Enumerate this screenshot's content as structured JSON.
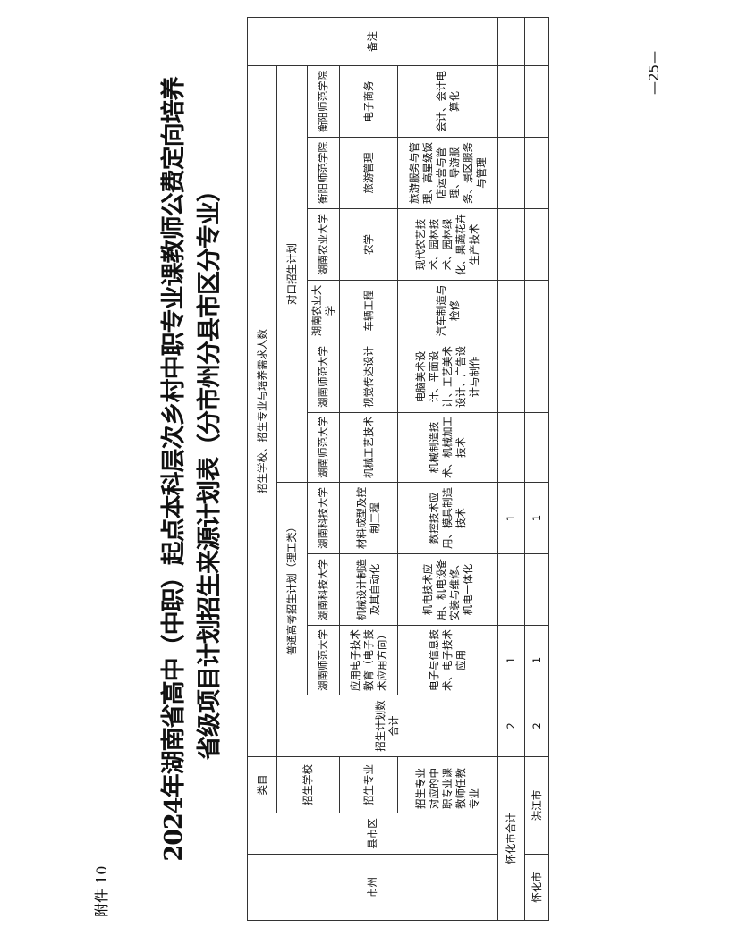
{
  "annex": "附件 10",
  "title_line1": "2024年湖南省高中（中职）起点本科层次乡村中职专业课教师公费定向培养",
  "title_line2": "省级项目计划招生来源计划表（分市州分县市区分专业）",
  "page_number": "—25—",
  "table": {
    "h_city": "市州",
    "h_county": "县市区",
    "h_category": "类目",
    "h_main": "招生学校、招生专业与培养需求人数",
    "h_remark": "备注",
    "h_school": "招生学校",
    "h_total": "招生计划数合计",
    "h_general": "普通高考招生计划（理工类）",
    "h_vocational": "对口招生计划",
    "h_major": "招生专业",
    "h_teacher_major": "招生专业对应的中职专业课教师任教专业",
    "schools": [
      "湖南师范大学",
      "湖南科技大学",
      "湖南科技大学",
      "湖南师范大学",
      "湖南师范大学",
      "湖南农业大学",
      "湖南农业大学",
      "衡阳师范学院",
      "衡阳师范学院"
    ],
    "majors": [
      "应用电子技术教育（电子技术应用方向）",
      "机械设计制造及其自动化",
      "材料成型及控制工程",
      "机械工艺技术",
      "视觉传达设计",
      "车辆工程",
      "农学",
      "旅游管理",
      "电子商务"
    ],
    "teacher_majors": [
      "电子与信息技术、电子技术应用",
      "机电技术应用、机电设备安装与维修、机电一体化",
      "数控技术应用、模具制造技术",
      "机械制造技术、机械加工技术",
      "电脑美术设计、平面设计、工艺美术设计、广告设计与制作",
      "汽车制造与检修",
      "现代农艺技术、园林技术、园林绿化、果蔬花卉生产技术",
      "旅游服务与管理、高星级饭店运营与管理、导游服务、景区服务与管理",
      "会计、会计电算化"
    ],
    "rows": [
      {
        "label": "怀化市合计",
        "total": "2",
        "values": [
          "1",
          "",
          "1",
          "",
          "",
          "",
          "",
          "",
          ""
        ],
        "remark": ""
      },
      {
        "city": "怀化市",
        "county": "洪江市",
        "total": "2",
        "values": [
          "1",
          "",
          "1",
          "",
          "",
          "",
          "",
          "",
          ""
        ],
        "remark": ""
      }
    ]
  }
}
